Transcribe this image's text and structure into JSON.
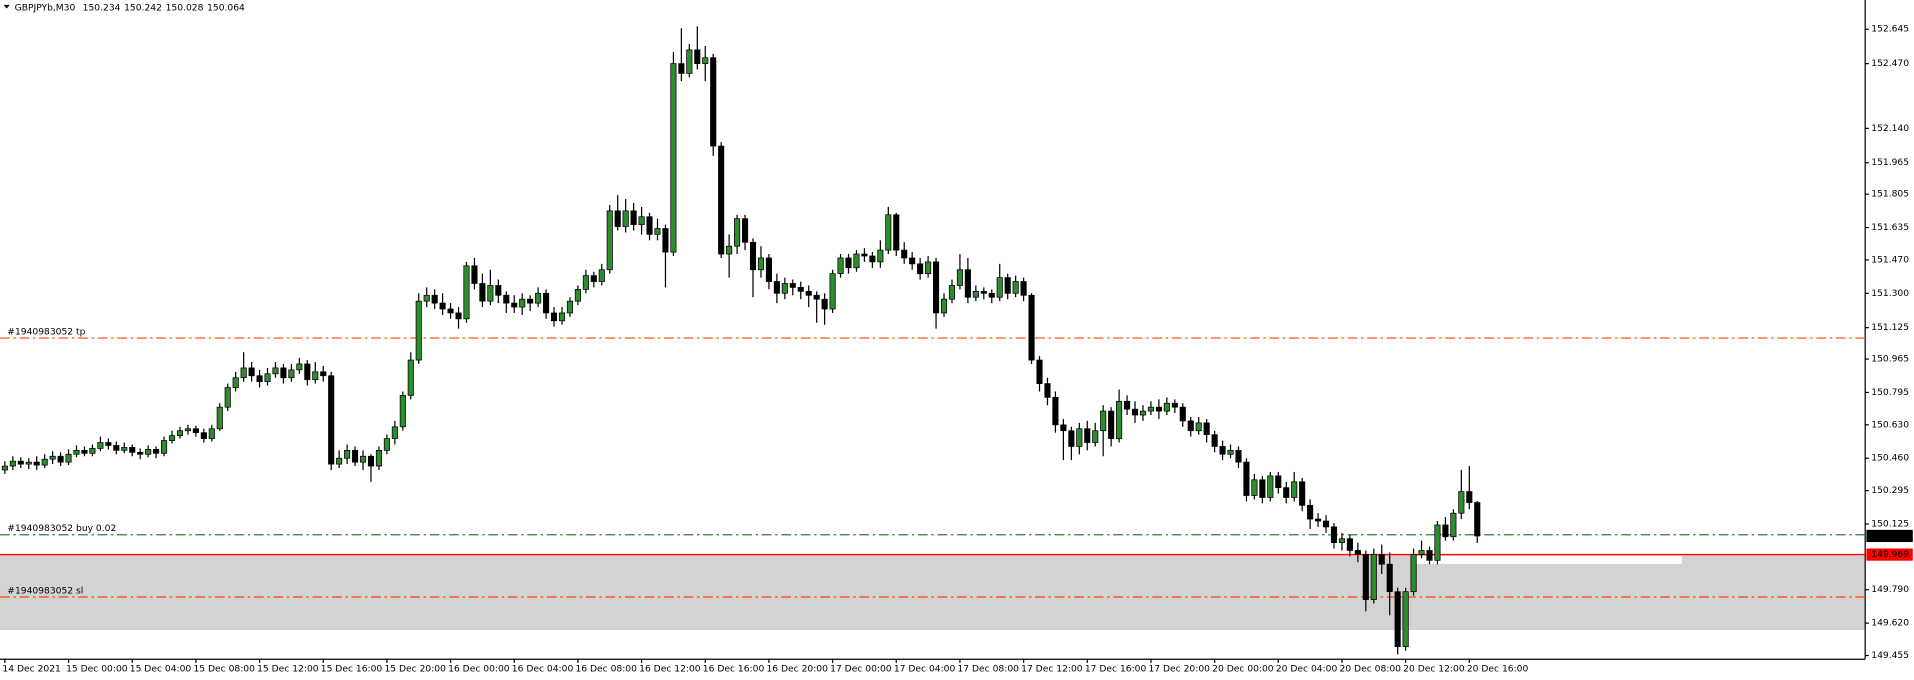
{
  "chart_data": {
    "type": "candlestick",
    "symbol": "GBPJPYb,M30",
    "header_values": [
      150.234,
      150.242,
      150.028,
      150.064
    ],
    "categories": [
      "14 Dec 2021",
      null,
      null,
      null,
      null,
      null,
      null,
      null,
      "15 Dec 00:00",
      null,
      null,
      null,
      null,
      null,
      null,
      null,
      "15 Dec 04:00",
      null,
      null,
      null,
      null,
      null,
      null,
      null,
      "15 Dec 08:00",
      null,
      null,
      null,
      null,
      null,
      null,
      null,
      "15 Dec 12:00",
      null,
      null,
      null,
      null,
      null,
      null,
      null,
      "15 Dec 16:00",
      null,
      null,
      null,
      null,
      null,
      null,
      null,
      "15 Dec 20:00",
      null,
      null,
      null,
      null,
      null,
      null,
      null,
      "16 Dec 00:00",
      null,
      null,
      null,
      null,
      null,
      null,
      null,
      "16 Dec 04:00",
      null,
      null,
      null,
      null,
      null,
      null,
      null,
      "16 Dec 08:00",
      null,
      null,
      null,
      null,
      null,
      null,
      null,
      "16 Dec 12:00",
      null,
      null,
      null,
      null,
      null,
      null,
      null,
      "16 Dec 16:00",
      null,
      null,
      null,
      null,
      null,
      null,
      null,
      "16 Dec 20:00",
      null,
      null,
      null,
      null,
      null,
      null,
      null,
      "17 Dec 00:00",
      null,
      null,
      null,
      null,
      null,
      null,
      null,
      "17 Dec 04:00",
      null,
      null,
      null,
      null,
      null,
      null,
      null,
      "17 Dec 08:00",
      null,
      null,
      null,
      null,
      null,
      null,
      null,
      "17 Dec 12:00",
      null,
      null,
      null,
      null,
      null,
      null,
      null,
      "17 Dec 16:00",
      null,
      null,
      null,
      null,
      null,
      null,
      null,
      "17 Dec 20:00",
      null,
      null,
      null,
      null,
      null,
      null,
      null,
      "20 Dec 00:00",
      null,
      null,
      null,
      null,
      null,
      null,
      null,
      "20 Dec 04:00",
      null,
      null,
      null,
      null,
      null,
      null,
      null,
      "20 Dec 08:00",
      null,
      null,
      null,
      null,
      null,
      null,
      null,
      "20 Dec 12:00",
      null,
      null,
      null,
      null,
      null,
      null,
      null,
      "20 Dec 16:00",
      null
    ],
    "open": [
      150.4,
      150.42,
      150.445,
      150.43,
      150.44,
      150.425,
      150.455,
      150.47,
      150.44,
      150.48,
      150.5,
      150.485,
      150.51,
      150.54,
      150.525,
      150.5,
      150.515,
      150.49,
      150.48,
      150.505,
      150.485,
      150.55,
      150.575,
      150.6,
      150.61,
      150.59,
      150.56,
      150.61,
      150.72,
      150.82,
      150.87,
      150.92,
      150.88,
      150.85,
      150.89,
      150.92,
      150.87,
      150.91,
      150.94,
      150.86,
      150.9,
      150.88,
      150.43,
      150.46,
      150.5,
      150.44,
      150.47,
      150.42,
      150.5,
      150.56,
      150.62,
      150.78,
      150.96,
      151.26,
      151.29,
      151.25,
      151.22,
      151.2,
      151.17,
      151.44,
      151.35,
      151.26,
      151.34,
      151.29,
      151.25,
      151.23,
      151.27,
      151.25,
      151.3,
      151.2,
      151.16,
      151.2,
      151.26,
      151.32,
      151.39,
      151.36,
      151.42,
      151.72,
      151.64,
      151.72,
      151.65,
      151.69,
      151.6,
      151.63,
      151.51,
      152.47,
      152.42,
      152.54,
      152.47,
      152.5,
      152.05,
      151.5,
      151.54,
      151.68,
      151.56,
      151.42,
      151.48,
      151.36,
      151.3,
      151.35,
      151.33,
      151.31,
      151.29,
      151.27,
      151.22,
      151.4,
      151.48,
      151.43,
      151.5,
      151.49,
      151.46,
      151.52,
      151.7,
      151.52,
      151.48,
      151.45,
      151.4,
      151.46,
      151.2,
      151.27,
      151.34,
      151.42,
      151.28,
      151.31,
      151.3,
      151.28,
      151.38,
      151.3,
      151.36,
      151.29,
      150.96,
      150.84,
      150.77,
      150.63,
      150.6,
      150.52,
      150.61,
      150.54,
      150.6,
      150.7,
      150.56,
      150.75,
      150.71,
      150.68,
      150.7,
      150.72,
      150.7,
      150.74,
      150.72,
      150.65,
      150.6,
      150.64,
      150.58,
      150.52,
      150.48,
      150.5,
      150.44,
      150.27,
      150.35,
      150.26,
      150.37,
      150.31,
      150.26,
      150.34,
      150.22,
      150.15,
      150.14,
      150.11,
      150.03,
      150.05,
      149.99,
      149.97,
      149.74,
      149.97,
      149.92,
      149.78,
      149.5,
      149.78,
      149.97,
      149.99,
      149.94,
      150.12,
      150.06,
      150.18,
      150.29,
      150.234
    ],
    "high": [
      150.445,
      150.47,
      150.465,
      150.46,
      150.47,
      150.48,
      150.495,
      150.49,
      150.505,
      150.525,
      150.52,
      150.53,
      150.57,
      150.56,
      150.545,
      150.54,
      150.53,
      150.51,
      150.525,
      150.52,
      150.57,
      150.6,
      150.62,
      150.63,
      150.625,
      150.61,
      150.63,
      150.74,
      150.84,
      150.9,
      151.0,
      150.95,
      150.91,
      150.92,
      150.95,
      150.94,
      150.94,
      150.97,
      150.96,
      150.95,
      150.93,
      150.9,
      150.5,
      150.53,
      150.52,
      150.5,
      150.48,
      150.52,
      150.58,
      150.65,
      150.8,
      151.0,
      151.3,
      151.33,
      151.32,
      151.3,
      151.25,
      151.23,
      151.46,
      151.48,
      151.4,
      151.42,
      151.37,
      151.31,
      151.29,
      151.3,
      151.29,
      151.33,
      151.32,
      151.23,
      151.23,
      151.28,
      151.34,
      151.42,
      151.41,
      151.45,
      151.75,
      151.8,
      151.78,
      151.76,
      151.74,
      151.71,
      151.68,
      151.65,
      152.53,
      152.65,
      152.57,
      152.66,
      152.56,
      152.52,
      152.07,
      151.6,
      151.7,
      151.7,
      151.58,
      151.54,
      151.5,
      151.4,
      151.38,
      151.37,
      151.36,
      151.34,
      151.31,
      151.3,
      151.42,
      151.5,
      151.5,
      151.52,
      151.53,
      151.51,
      151.57,
      151.74,
      151.71,
      151.56,
      151.51,
      151.48,
      151.49,
      151.48,
      151.3,
      151.37,
      151.5,
      151.48,
      151.34,
      151.33,
      151.32,
      151.45,
      151.4,
      151.39,
      151.38,
      151.3,
      150.98,
      150.87,
      150.8,
      150.66,
      150.62,
      150.64,
      150.65,
      150.64,
      150.73,
      150.72,
      150.81,
      150.78,
      150.75,
      150.73,
      150.75,
      150.76,
      150.77,
      150.76,
      150.74,
      150.67,
      150.67,
      150.66,
      150.6,
      150.55,
      150.53,
      150.52,
      150.46,
      150.38,
      150.37,
      150.39,
      150.39,
      150.34,
      150.39,
      150.36,
      150.25,
      150.18,
      150.17,
      150.13,
      150.08,
      150.07,
      150.03,
      149.99,
      150.0,
      150.02,
      149.98,
      149.8,
      149.8,
      150.0,
      150.04,
      150.01,
      150.14,
      150.16,
      150.2,
      150.4,
      150.42,
      150.242
    ],
    "low": [
      150.38,
      150.4,
      150.41,
      150.405,
      150.4,
      150.41,
      150.43,
      150.42,
      150.425,
      150.465,
      150.47,
      150.47,
      150.495,
      150.505,
      150.48,
      150.485,
      150.47,
      150.455,
      150.465,
      150.46,
      150.47,
      150.535,
      150.56,
      150.58,
      150.57,
      150.54,
      150.545,
      150.6,
      150.7,
      150.8,
      150.85,
      150.85,
      150.82,
      150.83,
      150.87,
      150.84,
      150.85,
      150.89,
      150.83,
      150.84,
      150.85,
      150.4,
      150.41,
      150.43,
      150.42,
      150.4,
      150.34,
      150.4,
      150.48,
      150.53,
      150.6,
      150.76,
      150.94,
      151.23,
      151.22,
      151.19,
      151.17,
      151.12,
      151.15,
      151.32,
      151.23,
      151.24,
      151.25,
      151.2,
      151.2,
      151.19,
      151.21,
      151.23,
      151.17,
      151.13,
      151.14,
      151.18,
      151.24,
      151.3,
      151.33,
      151.34,
      151.4,
      151.62,
      151.61,
      151.62,
      151.6,
      151.57,
      151.57,
      151.33,
      151.49,
      152.38,
      152.4,
      152.44,
      152.38,
      152.0,
      151.48,
      151.38,
      151.5,
      151.52,
      151.28,
      151.38,
      151.32,
      151.25,
      151.27,
      151.29,
      151.27,
      151.23,
      151.15,
      151.14,
      151.2,
      151.38,
      151.4,
      151.41,
      151.46,
      151.43,
      151.43,
      151.5,
      151.49,
      151.45,
      151.42,
      151.37,
      151.38,
      151.12,
      151.18,
      151.25,
      151.32,
      151.25,
      151.26,
      151.27,
      151.25,
      151.26,
      151.27,
      151.28,
      151.26,
      150.94,
      150.8,
      150.73,
      150.59,
      150.45,
      150.45,
      150.48,
      150.5,
      150.52,
      150.47,
      150.52,
      150.54,
      150.68,
      150.64,
      150.65,
      150.68,
      150.66,
      150.68,
      150.69,
      150.62,
      150.57,
      150.58,
      150.54,
      150.49,
      150.45,
      150.46,
      150.41,
      150.24,
      150.25,
      150.23,
      150.24,
      150.28,
      150.23,
      150.24,
      150.19,
      150.1,
      150.11,
      150.08,
      150.0,
      149.99,
      149.96,
      149.93,
      149.68,
      149.72,
      149.87,
      149.66,
      149.46,
      149.48,
      149.76,
      149.95,
      149.92,
      149.92,
      150.04,
      150.04,
      150.15,
      150.2,
      150.028
    ],
    "close": [
      150.42,
      150.445,
      150.43,
      150.44,
      150.425,
      150.455,
      150.47,
      150.44,
      150.48,
      150.5,
      150.485,
      150.51,
      150.54,
      150.525,
      150.5,
      150.515,
      150.49,
      150.48,
      150.505,
      150.485,
      150.55,
      150.575,
      150.6,
      150.61,
      150.59,
      150.56,
      150.61,
      150.72,
      150.82,
      150.87,
      150.92,
      150.88,
      150.85,
      150.89,
      150.92,
      150.87,
      150.91,
      150.94,
      150.86,
      150.9,
      150.88,
      150.43,
      150.46,
      150.5,
      150.44,
      150.47,
      150.42,
      150.5,
      150.56,
      150.62,
      150.78,
      150.96,
      151.26,
      151.29,
      151.25,
      151.22,
      151.2,
      151.17,
      151.44,
      151.35,
      151.26,
      151.34,
      151.29,
      151.25,
      151.23,
      151.27,
      151.25,
      151.3,
      151.2,
      151.16,
      151.2,
      151.26,
      151.32,
      151.39,
      151.36,
      151.42,
      151.72,
      151.64,
      151.72,
      151.65,
      151.69,
      151.6,
      151.63,
      151.51,
      152.47,
      152.42,
      152.54,
      152.47,
      152.5,
      152.05,
      151.5,
      151.54,
      151.68,
      151.56,
      151.42,
      151.48,
      151.36,
      151.3,
      151.35,
      151.33,
      151.31,
      151.29,
      151.27,
      151.22,
      151.4,
      151.48,
      151.43,
      151.5,
      151.49,
      151.46,
      151.52,
      151.7,
      151.52,
      151.48,
      151.45,
      151.4,
      151.46,
      151.2,
      151.27,
      151.34,
      151.42,
      151.28,
      151.31,
      151.3,
      151.28,
      151.38,
      151.3,
      151.36,
      151.29,
      150.96,
      150.84,
      150.77,
      150.63,
      150.6,
      150.52,
      150.61,
      150.54,
      150.6,
      150.7,
      150.56,
      150.75,
      150.71,
      150.68,
      150.7,
      150.72,
      150.7,
      150.74,
      150.72,
      150.65,
      150.6,
      150.64,
      150.58,
      150.52,
      150.48,
      150.5,
      150.44,
      150.27,
      150.35,
      150.26,
      150.37,
      150.31,
      150.26,
      150.34,
      150.22,
      150.15,
      150.14,
      150.11,
      150.03,
      150.05,
      149.99,
      149.97,
      149.74,
      149.97,
      149.92,
      149.78,
      149.5,
      149.78,
      149.97,
      149.99,
      149.94,
      150.12,
      150.06,
      150.18,
      150.29,
      150.234,
      150.064
    ],
    "up_color": "#2e8b2e",
    "down_color": "#000000",
    "ylim": [
      149.436,
      152.794
    ],
    "yticks": [
      152.645,
      {
        "value": 152.47,
        "label": "152.470"
      },
      {
        "value": 152.14,
        "label": "152.140"
      },
      151.965,
      151.805,
      151.635,
      {
        "value": 151.47,
        "label": "151.470"
      },
      {
        "value": 151.3,
        "label": "151.300"
      },
      151.125,
      150.965,
      150.795,
      {
        "value": 150.63,
        "label": "150.630"
      },
      {
        "value": 150.46,
        "label": "150.460"
      },
      150.295,
      150.125,
      {
        "value": 149.79,
        "label": "149.790"
      },
      {
        "value": 149.62,
        "label": "149.620"
      },
      149.455
    ],
    "levels": [
      {
        "label": "#1940983052 tp",
        "value": 151.072,
        "color": "#ff4500"
      },
      {
        "label": "#1940983052 buy 0.02",
        "value": 150.07,
        "color": "#2e7d32"
      },
      {
        "label": "#1940983052 sl",
        "value": 149.753,
        "color": "#ff4500"
      }
    ],
    "red_line": {
      "value": 149.969,
      "color": "#ff0000"
    },
    "zone": {
      "top": 149.963,
      "bottom": 149.585,
      "color": "#d3d3d3"
    },
    "grid": false
  }
}
